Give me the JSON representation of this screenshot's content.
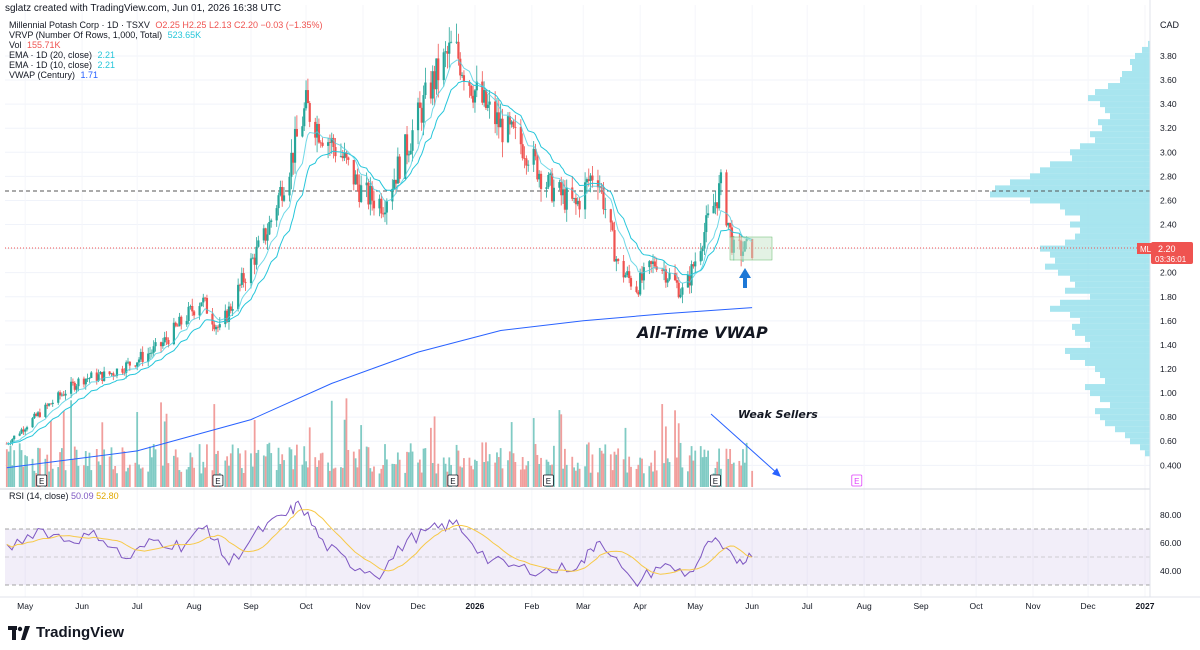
{
  "header": {
    "credit": "sglatz created with TradingView.com, Jun 01, 2026 16:38 UTC"
  },
  "legend": {
    "symbol": "Millennial Potash Corp · 1D · TSXV",
    "ohlc": "O2.25 H2.25 L2.13 C2.20 −0.03 (−1.35%)",
    "vrvp_label": "VRVP (Number Of Rows, 1,000, Total)",
    "vrvp_value": "523.65K",
    "vol_label": "Vol",
    "vol_value": "155.71K",
    "ema20_label": "EMA · 1D (20, close)",
    "ema20_value": "2.21",
    "ema10_label": "EMA · 1D (10, close)",
    "ema10_value": "2.21",
    "vwap_label": "VWAP (Century)",
    "vwap_value": "1.71",
    "rsi_label": "RSI (14, close)",
    "rsi_value1": "50.09",
    "rsi_value2": "52.80"
  },
  "price_axis": {
    "currency": "CAD",
    "price_badge_ticker": "MLP",
    "price_badge_value": "2.20",
    "price_badge_timer": "03:36:01"
  },
  "annotations": {
    "vwap_note": "All-Time VWAP",
    "sellers_note": "Weak Sellers"
  },
  "footer": {
    "brand": "TradingView"
  },
  "colors": {
    "up": "#26a69a",
    "down": "#ef5350",
    "ema": "#26c6da",
    "vwap": "#2962ff",
    "rsi_line": "#7e57c2",
    "rsi_ma": "#f7c948",
    "profile": "#99e1ec",
    "arrow": "#1e78d6",
    "trendline": "#2962ff"
  },
  "chart_data": [
    {
      "type": "candlestick",
      "title": "Millennial Potash Corp · 1D · TSXV",
      "ylabel": "CAD",
      "y_ticks": [
        "0.400",
        "0.60",
        "0.80",
        "1.00",
        "1.20",
        "1.40",
        "1.60",
        "1.80",
        "2.00",
        "2.20",
        "2.40",
        "2.60",
        "2.80",
        "3.00",
        "3.20",
        "3.40",
        "3.60",
        "3.80"
      ],
      "x_ticks": [
        "May",
        "Jun",
        "Jul",
        "Aug",
        "Sep",
        "Oct",
        "Nov",
        "Dec",
        "2026",
        "Feb",
        "Mar",
        "Apr",
        "May",
        "Jun",
        "Jul",
        "Aug",
        "Sep",
        "Oct",
        "Nov",
        "Dec",
        "2027"
      ],
      "ylim": [
        0.3,
        4.0
      ],
      "close_path": [
        [
          "2025-04-21",
          0.58
        ],
        [
          "2025-05-05",
          0.78
        ],
        [
          "2025-05-20",
          0.98
        ],
        [
          "2025-06-01",
          1.12
        ],
        [
          "2025-06-15",
          1.15
        ],
        [
          "2025-06-29",
          1.26
        ],
        [
          "2025-07-13",
          1.38
        ],
        [
          "2025-07-27",
          1.62
        ],
        [
          "2025-08-05",
          1.78
        ],
        [
          "2025-08-15",
          1.52
        ],
        [
          "2025-08-28",
          1.95
        ],
        [
          "2025-09-10",
          2.35
        ],
        [
          "2025-09-23",
          2.95
        ],
        [
          "2025-10-01",
          3.38
        ],
        [
          "2025-10-08",
          3.2
        ],
        [
          "2025-10-20",
          2.98
        ],
        [
          "2025-11-01",
          2.65
        ],
        [
          "2025-11-12",
          2.58
        ],
        [
          "2025-11-25",
          3.05
        ],
        [
          "2025-12-08",
          3.55
        ],
        [
          "2025-12-20",
          3.88
        ],
        [
          "2026-01-03",
          3.45
        ],
        [
          "2026-01-16",
          3.2
        ],
        [
          "2026-01-28",
          3.05
        ],
        [
          "2026-02-10",
          2.72
        ],
        [
          "2026-02-25",
          2.55
        ],
        [
          "2026-03-08",
          2.88
        ],
        [
          "2026-03-20",
          2.05
        ],
        [
          "2026-03-30",
          1.88
        ],
        [
          "2026-04-10",
          2.1
        ],
        [
          "2026-04-25",
          1.82
        ],
        [
          "2026-05-05",
          2.3
        ],
        [
          "2026-05-15",
          2.72
        ],
        [
          "2026-05-22",
          2.18
        ],
        [
          "2026-06-01",
          2.2
        ]
      ],
      "lines": [
        {
          "name": "EMA · 1D (20, close)",
          "last": 2.21
        },
        {
          "name": "EMA · 1D (10, close)",
          "last": 2.21
        },
        {
          "name": "VWAP (Century)",
          "points": [
            [
              "2025-04-21",
              0.38
            ],
            [
              "2025-07-01",
              0.52
            ],
            [
              "2025-09-01",
              0.78
            ],
            [
              "2025-10-15",
              1.08
            ],
            [
              "2025-12-01",
              1.34
            ],
            [
              "2026-01-15",
              1.52
            ],
            [
              "2026-03-01",
              1.6
            ],
            [
              "2026-04-15",
              1.66
            ],
            [
              "2026-06-01",
              1.71
            ]
          ]
        }
      ],
      "horizontal_line": 2.68,
      "last_price_line": 2.2
    },
    {
      "type": "bar",
      "title": "Vol",
      "last_value": "155.71K"
    },
    {
      "type": "line",
      "title": "RSI (14, close)",
      "y_ticks": [
        "40.00",
        "60.00",
        "80.00"
      ],
      "ylim": [
        25,
        85
      ],
      "bands": [
        30,
        50,
        70
      ],
      "series": [
        {
          "name": "RSI",
          "points": [
            [
              "2025-04-21",
              55
            ],
            [
              "2025-05-08",
              70
            ],
            [
              "2025-05-25",
              62
            ],
            [
              "2025-06-10",
              66
            ],
            [
              "2025-06-25",
              48
            ],
            [
              "2025-07-10",
              62
            ],
            [
              "2025-07-25",
              58
            ],
            [
              "2025-08-08",
              72
            ],
            [
              "2025-08-20",
              45
            ],
            [
              "2025-09-05",
              68
            ],
            [
              "2025-09-20",
              80
            ],
            [
              "2025-09-28",
              88
            ],
            [
              "2025-10-10",
              60
            ],
            [
              "2025-10-25",
              45
            ],
            [
              "2025-11-10",
              38
            ],
            [
              "2025-11-25",
              62
            ],
            [
              "2025-12-10",
              70
            ],
            [
              "2025-12-22",
              74
            ],
            [
              "2026-01-08",
              48
            ],
            [
              "2026-01-25",
              42
            ],
            [
              "2026-02-12",
              40
            ],
            [
              "2026-02-28",
              45
            ],
            [
              "2026-03-10",
              64
            ],
            [
              "2026-03-28",
              30
            ],
            [
              "2026-04-12",
              44
            ],
            [
              "2026-04-28",
              38
            ],
            [
              "2026-05-10",
              62
            ],
            [
              "2026-05-22",
              48
            ],
            [
              "2026-06-01",
              50
            ]
          ]
        }
      ]
    }
  ]
}
